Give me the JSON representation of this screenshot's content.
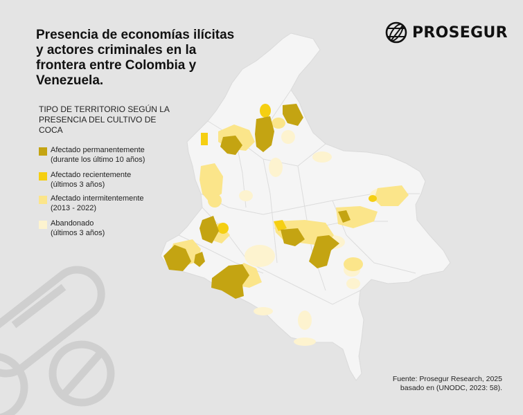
{
  "title": "Presencia de economías ilícitas y actores criminales en la frontera entre Colombia y Venezuela.",
  "brand": {
    "name": "PROSEGUR",
    "logo_icon": "globe-icon"
  },
  "legend": {
    "heading": "TIPO DE TERRITORIO SEGÚN LA PRESENCIA DEL CULTIVO DE COCA",
    "items": [
      {
        "label": "Afectado permanentemente",
        "sublabel": "(durante los último 10 años)",
        "color": "#c4a412"
      },
      {
        "label": "Afectado recientemente",
        "sublabel": "(últimos 3 años)",
        "color": "#f5cf12"
      },
      {
        "label": "Afectado intermitentemente",
        "sublabel": "(2013 - 2022)",
        "color": "#fbe58a"
      },
      {
        "label": "Abandonado",
        "sublabel": "(últimos 3 años)",
        "color": "#fdf3cf"
      }
    ]
  },
  "source": {
    "line1": "Fuente: Prosegur Research, 2025",
    "line2": "basado en (UNODC, 2023: 58)."
  },
  "colors": {
    "background": "#e4e4e4",
    "country_fill": "#f4f4f4",
    "borders": "#d7d7d7",
    "watermark": "#cfcfcf"
  }
}
